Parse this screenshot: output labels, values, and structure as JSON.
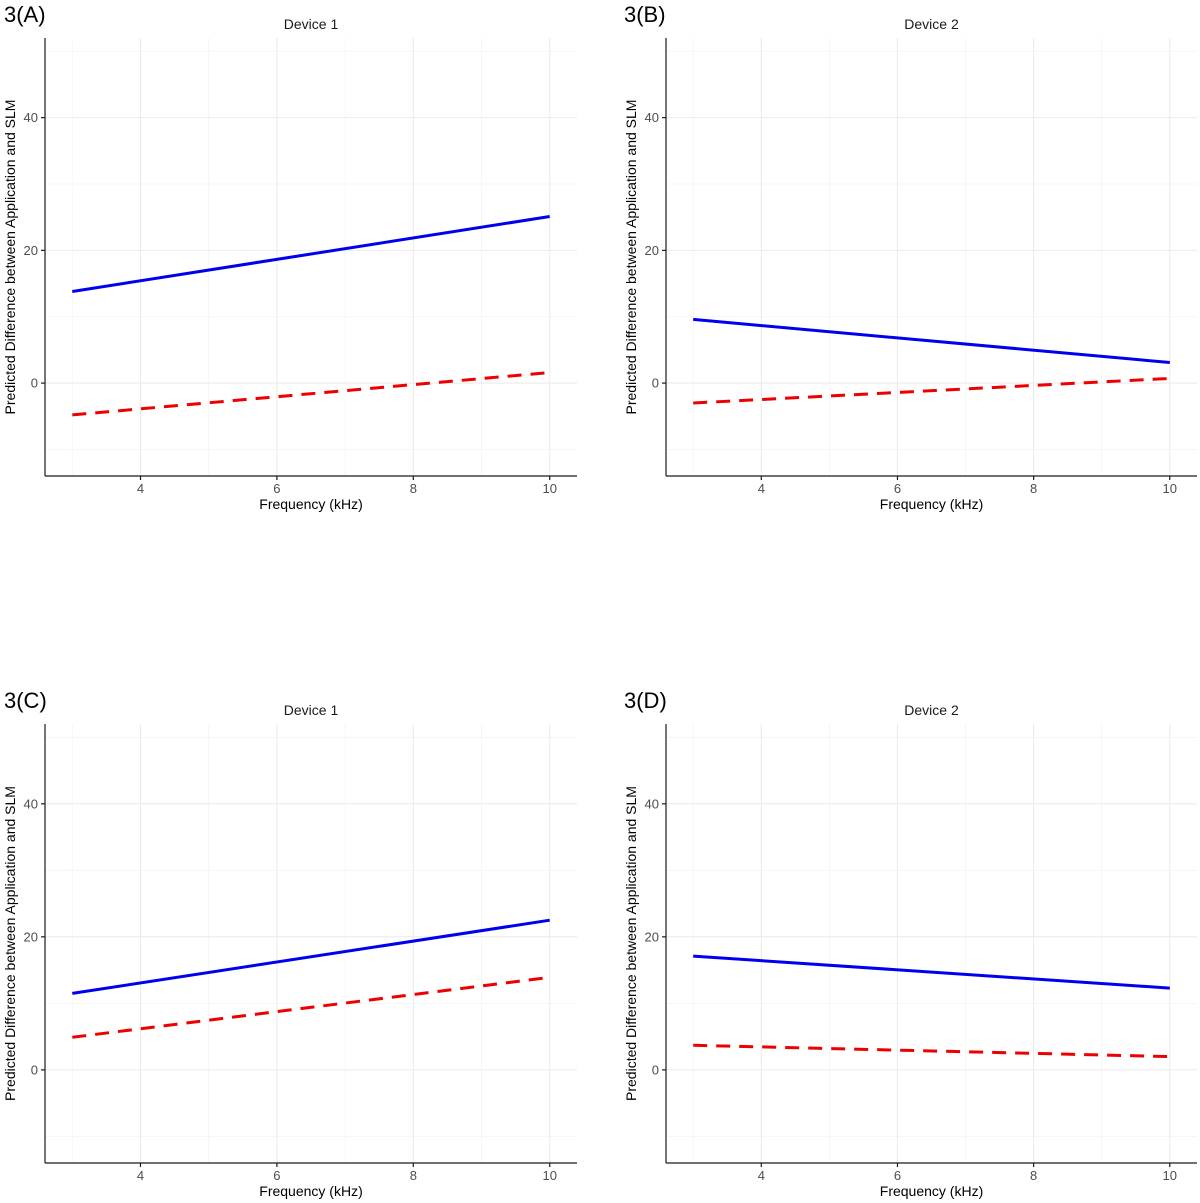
{
  "chart_data": [
    {
      "type": "line",
      "panel_label": "3(A)",
      "title": "Device 1",
      "xlabel": "Frequency (kHz)",
      "ylabel": "Predicted Difference between Application and SLM",
      "xlim": [
        2.6,
        10.4
      ],
      "ylim": [
        -14,
        52
      ],
      "x_ticks": [
        4,
        6,
        8,
        10
      ],
      "y_ticks": [
        0,
        20,
        40
      ],
      "grid": true,
      "series": [
        {
          "line_style": "solid",
          "color": "#0000ee",
          "x": [
            3,
            10
          ],
          "y": [
            13.8,
            25.1
          ]
        },
        {
          "line_style": "dashed",
          "color": "#ee0000",
          "x": [
            3,
            10
          ],
          "y": [
            -4.8,
            1.6
          ]
        }
      ]
    },
    {
      "type": "line",
      "panel_label": "3(B)",
      "title": "Device 2",
      "xlabel": "Frequency (kHz)",
      "ylabel": "Predicted Difference between Application and SLM",
      "xlim": [
        2.6,
        10.4
      ],
      "ylim": [
        -14,
        52
      ],
      "x_ticks": [
        4,
        6,
        8,
        10
      ],
      "y_ticks": [
        0,
        20,
        40
      ],
      "grid": true,
      "series": [
        {
          "line_style": "solid",
          "color": "#0000ee",
          "x": [
            3,
            10
          ],
          "y": [
            9.6,
            3.1
          ]
        },
        {
          "line_style": "dashed",
          "color": "#ee0000",
          "x": [
            3,
            10
          ],
          "y": [
            -3.0,
            0.7
          ]
        }
      ]
    },
    {
      "type": "line",
      "panel_label": "3(C)",
      "title": "Device 1",
      "xlabel": "Frequency (kHz)",
      "ylabel": "Predicted Difference between Application and SLM",
      "xlim": [
        2.6,
        10.4
      ],
      "ylim": [
        -14,
        52
      ],
      "x_ticks": [
        4,
        6,
        8,
        10
      ],
      "y_ticks": [
        0,
        20,
        40
      ],
      "grid": true,
      "series": [
        {
          "line_style": "solid",
          "color": "#0000ee",
          "x": [
            3,
            10
          ],
          "y": [
            11.5,
            22.5
          ]
        },
        {
          "line_style": "dashed",
          "color": "#ee0000",
          "x": [
            3,
            10
          ],
          "y": [
            4.9,
            13.9
          ]
        }
      ]
    },
    {
      "type": "line",
      "panel_label": "3(D)",
      "title": "Device 2",
      "xlabel": "Frequency (kHz)",
      "ylabel": "Predicted Difference between Application and SLM",
      "xlim": [
        2.6,
        10.4
      ],
      "ylim": [
        -14,
        52
      ],
      "x_ticks": [
        4,
        6,
        8,
        10
      ],
      "y_ticks": [
        0,
        20,
        40
      ],
      "grid": true,
      "series": [
        {
          "line_style": "solid",
          "color": "#0000ee",
          "x": [
            3,
            10
          ],
          "y": [
            17.1,
            12.3
          ]
        },
        {
          "line_style": "dashed",
          "color": "#ee0000",
          "x": [
            3,
            10
          ],
          "y": [
            3.7,
            2.0
          ]
        }
      ]
    }
  ]
}
